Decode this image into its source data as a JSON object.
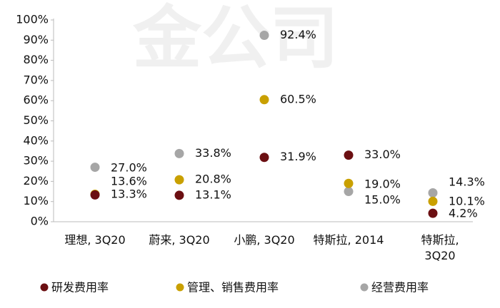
{
  "chart_data": {
    "type": "dot",
    "watermark": "金公司",
    "categories": [
      "理想, 3Q20",
      "蔚来, 3Q20",
      "小鹏, 3Q20",
      "特斯拉, 2014",
      "特斯拉, 3Q20"
    ],
    "series": [
      {
        "name": "研发费用率",
        "color": "#6b0f12",
        "values": [
          13.3,
          13.1,
          31.9,
          33.0,
          4.2
        ],
        "value_labels": [
          "13.3%",
          "13.1%",
          "31.9%",
          "33.0%",
          "4.2%"
        ]
      },
      {
        "name": "管理、销售费用率",
        "color": "#c9a000",
        "values": [
          13.6,
          20.8,
          60.5,
          19.0,
          10.1
        ],
        "value_labels": [
          "13.6%",
          "20.8%",
          "60.5%",
          "19.0%",
          "10.1%"
        ]
      },
      {
        "name": "经营费用率",
        "color": "#a6a6a6",
        "values": [
          27.0,
          33.8,
          92.4,
          15.0,
          14.3
        ],
        "value_labels": [
          "27.0%",
          "33.8%",
          "92.4%",
          "15.0%",
          "14.3%"
        ]
      }
    ],
    "ylim": [
      0,
      100
    ],
    "yticks": [
      {
        "value": 0,
        "label": "0%"
      },
      {
        "value": 10,
        "label": "10%"
      },
      {
        "value": 20,
        "label": "20%"
      },
      {
        "value": 30,
        "label": "30%"
      },
      {
        "value": 40,
        "label": "40%"
      },
      {
        "value": 50,
        "label": "50%"
      },
      {
        "value": 60,
        "label": "60%"
      },
      {
        "value": 70,
        "label": "70%"
      },
      {
        "value": 80,
        "label": "80%"
      },
      {
        "value": 90,
        "label": "90%"
      },
      {
        "value": 100,
        "label": "100%"
      }
    ],
    "grid": false,
    "legend": "bottom"
  }
}
